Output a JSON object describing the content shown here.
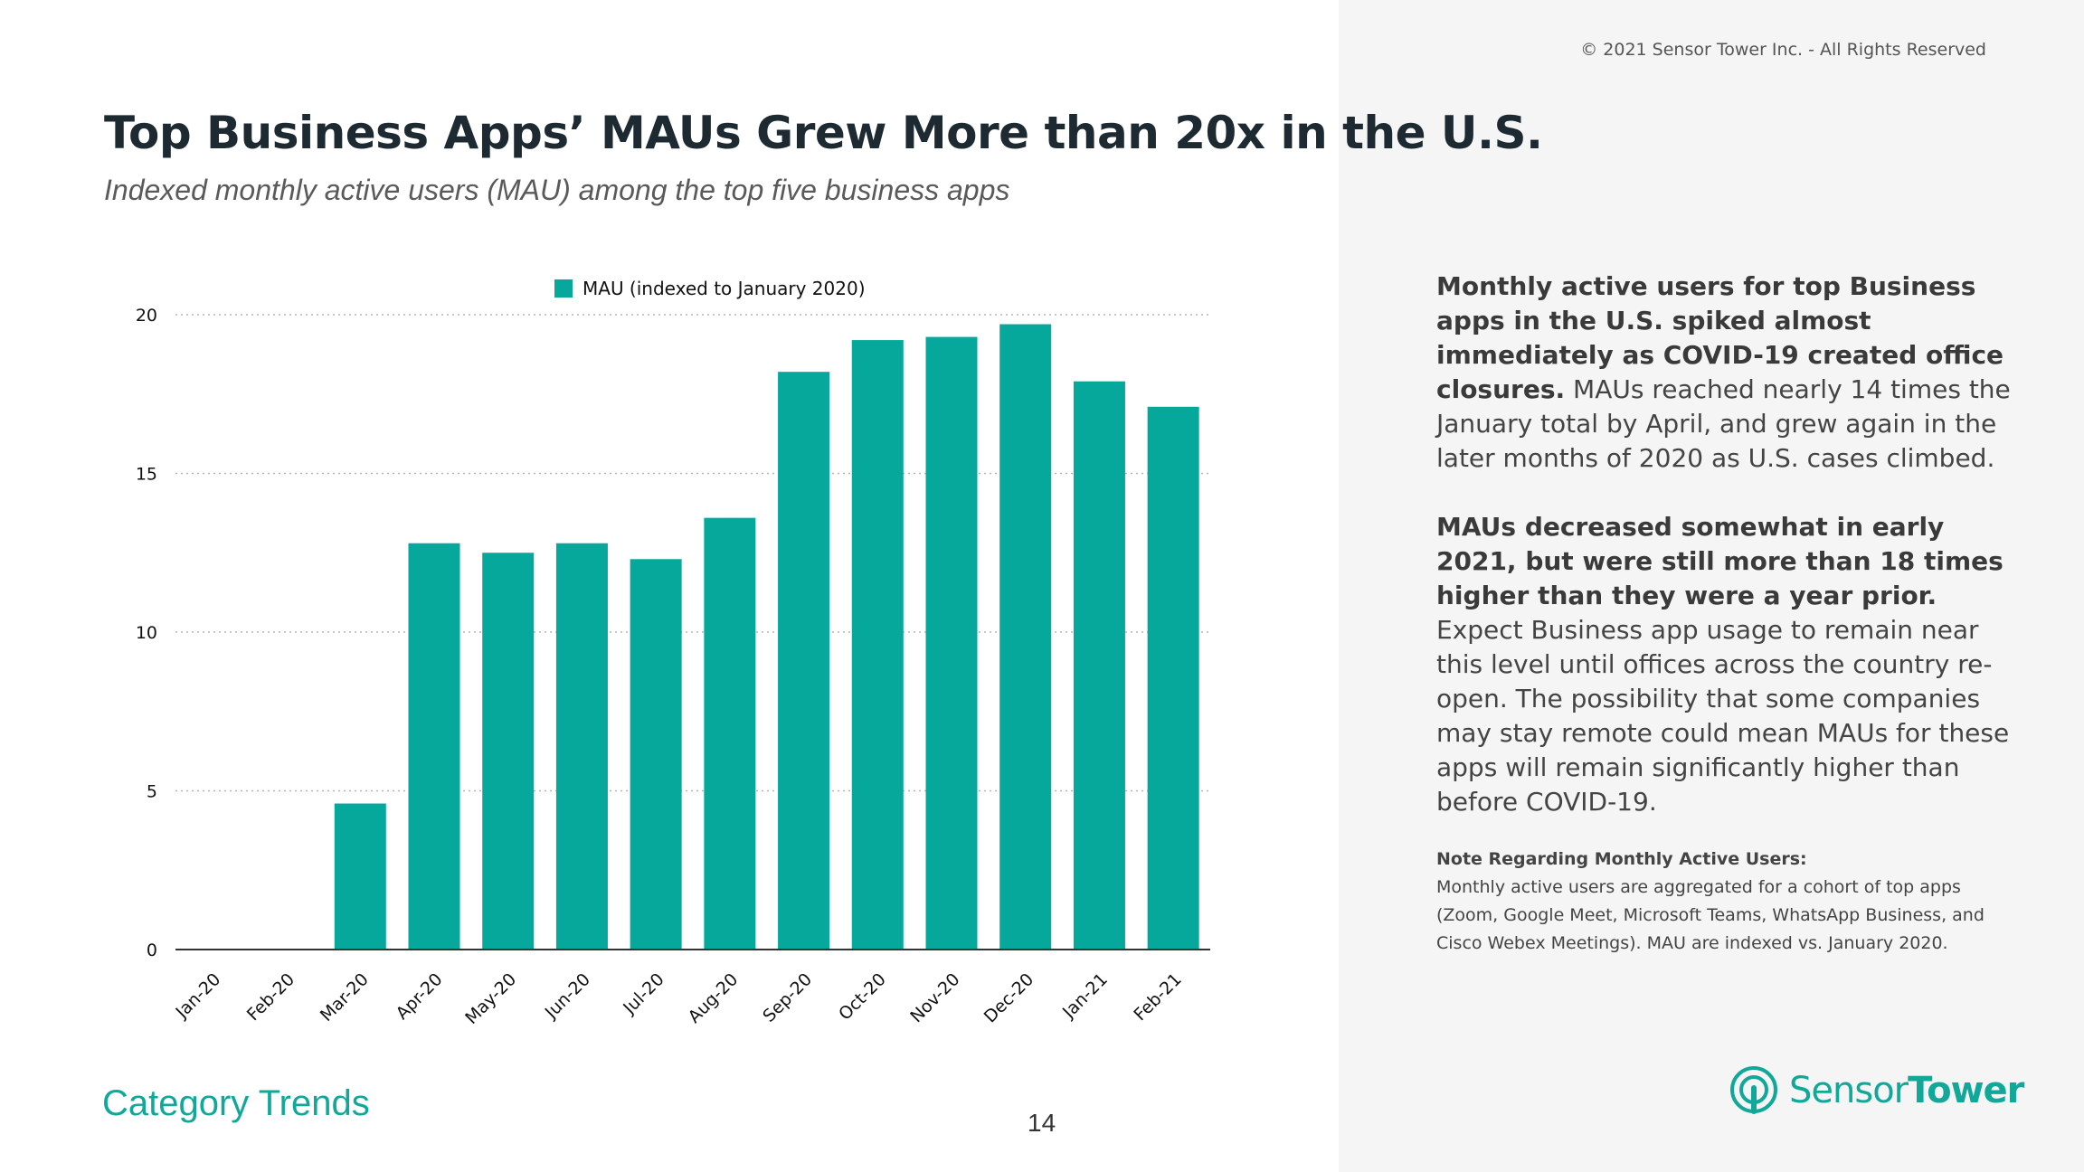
{
  "header": {
    "copyright": "© 2021 Sensor Tower Inc. - All Rights Reserved",
    "title": "Top Business Apps’ MAUs Grew More than 20x in the U.S.",
    "subtitle": "Indexed monthly active users (MAU) among the top five business apps"
  },
  "description": {
    "p1_bold": "Monthly active users for top Business apps in the U.S. spiked almost immediately as COVID-19 created office closures.",
    "p1_text": " MAUs reached nearly 14 times the January total by April, and grew again in the later months of 2020 as U.S. cases climbed.",
    "p2_bold": "MAUs decreased somewhat in early 2021, but were still more than 18 times higher than they were a year prior.",
    "p2_text": " Expect Business app usage to remain near this level until offices across the country re-open. The possibility that some companies may stay remote could mean MAUs for these apps will remain significantly higher than before COVID-19."
  },
  "note": {
    "title": "Note Regarding Monthly Active Users:",
    "text": "Monthly active users are aggregated for a cohort of top apps (Zoom, Google Meet, Microsoft Teams, WhatsApp Business, and Cisco Webex Meetings). MAU are indexed vs. January 2020."
  },
  "footer": {
    "category": "Category Trends",
    "page_number": "14",
    "logo_part1": "Sensor",
    "logo_part2": "Tower"
  },
  "colors": {
    "bar": "#05a89a",
    "accent": "#12a899",
    "grid": "#b5b5b5"
  },
  "chart_data": {
    "type": "bar",
    "categories": [
      "Jan-20",
      "Feb-20",
      "Mar-20",
      "Apr-20",
      "May-20",
      "Jun-20",
      "Jul-20",
      "Aug-20",
      "Sep-20",
      "Oct-20",
      "Nov-20",
      "Dec-20",
      "Jan-21",
      "Feb-21"
    ],
    "series": [
      {
        "name": "MAU (indexed to January 2020)",
        "values": [
          0,
          0,
          4.6,
          12.8,
          12.5,
          12.8,
          12.3,
          13.6,
          18.2,
          19.2,
          19.3,
          19.7,
          17.9,
          17.1
        ]
      }
    ],
    "yticks": [
      0,
      5,
      10,
      15,
      20
    ],
    "ylim": [
      0,
      20
    ],
    "grid": true,
    "legend_position": "top-center"
  }
}
